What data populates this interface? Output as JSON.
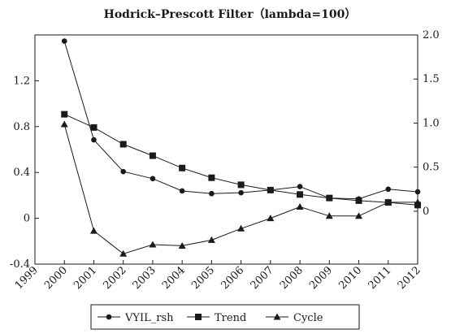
{
  "chart_data": {
    "type": "line",
    "title": "Hodrick–Prescott Filter（lambda=100）",
    "x_ticks": [
      "1999",
      "2000",
      "2001",
      "2002",
      "2003",
      "2004",
      "2005",
      "2006",
      "2007",
      "2008",
      "2009",
      "2010",
      "2011",
      "2012"
    ],
    "x": [
      2000,
      2001,
      2002,
      2003,
      2004,
      2005,
      2006,
      2007,
      2008,
      2009,
      2010,
      2011,
      2012
    ],
    "xlim": [
      1999,
      2012
    ],
    "left_axis": {
      "ylim": [
        -0.4,
        1.6
      ],
      "ticks": [
        "-0.4",
        "0",
        "0.4",
        "0.8",
        "1.2"
      ],
      "tick_values": [
        -0.4,
        0,
        0.4,
        0.8,
        1.2
      ]
    },
    "right_axis": {
      "ylim": [
        -0.6,
        2.0
      ],
      "ticks": [
        "0",
        "0.5",
        "1.0",
        "1.5",
        "2.0"
      ],
      "tick_values": [
        0,
        0.5,
        1.0,
        1.5,
        2.0
      ]
    },
    "series": [
      {
        "name": "VYIL_rsh",
        "axis": "right",
        "marker": "circle",
        "values": [
          1.93,
          0.81,
          0.45,
          0.37,
          0.23,
          0.2,
          0.21,
          0.24,
          0.28,
          0.15,
          0.14,
          0.25,
          0.22
        ]
      },
      {
        "name": "Trend",
        "axis": "right",
        "marker": "square",
        "values": [
          1.1,
          0.95,
          0.76,
          0.63,
          0.49,
          0.38,
          0.3,
          0.24,
          0.19,
          0.15,
          0.12,
          0.1,
          0.07
        ]
      },
      {
        "name": "Cycle",
        "axis": "left",
        "marker": "triangle",
        "values": [
          0.82,
          -0.11,
          -0.31,
          -0.23,
          -0.24,
          -0.19,
          -0.09,
          0.0,
          0.1,
          0.02,
          0.02,
          0.14,
          0.14
        ]
      }
    ],
    "legend_position": "bottom",
    "grid": false
  }
}
